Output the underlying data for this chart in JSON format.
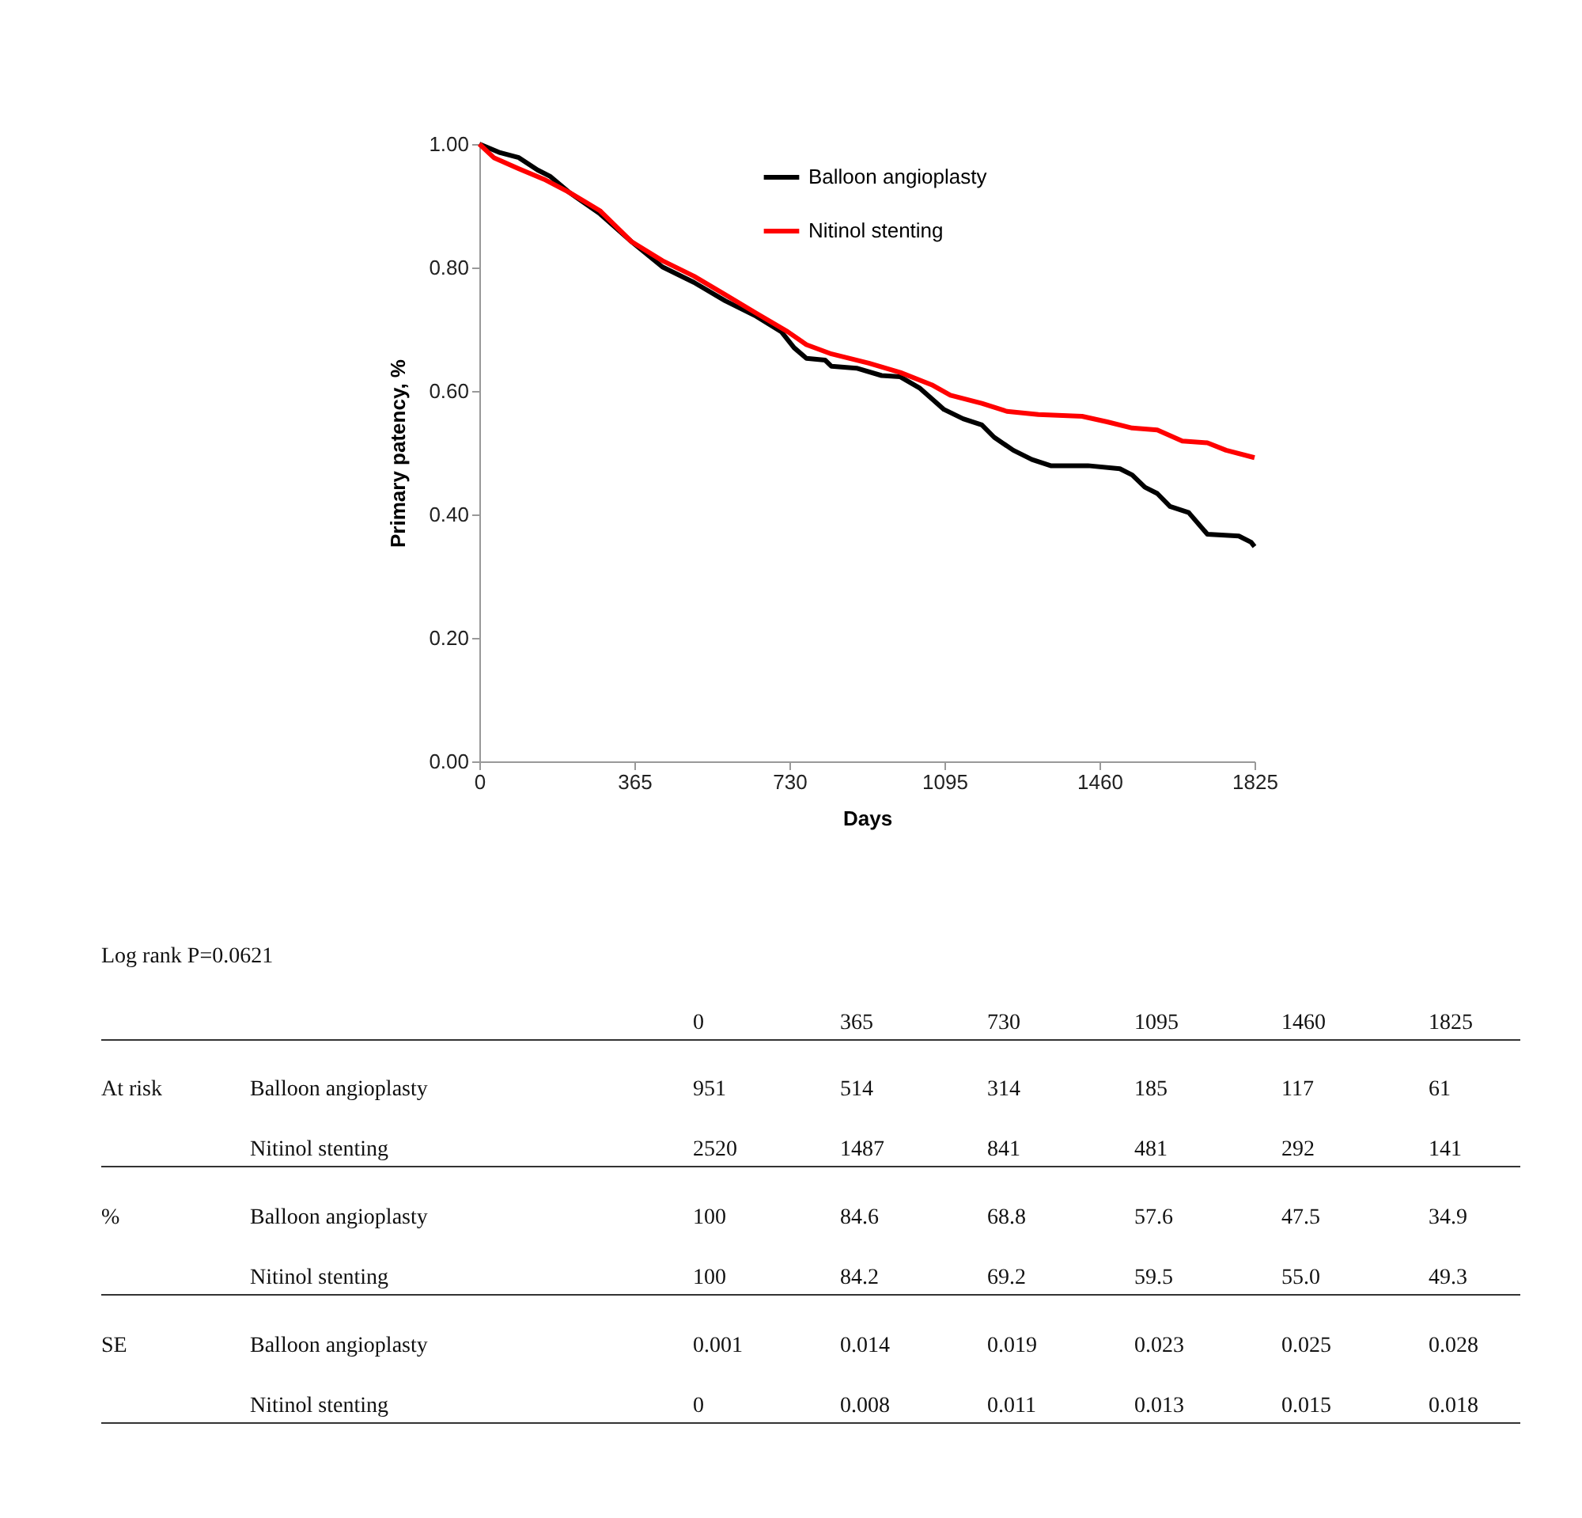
{
  "chart_data": {
    "type": "line",
    "xlabel": "Days",
    "ylabel": "Primary patency, %",
    "xlim": [
      0,
      1825
    ],
    "xticks": [
      0,
      365,
      730,
      1095,
      1460,
      1825
    ],
    "ylim": [
      0,
      1.0
    ],
    "yticks": [
      {
        "value": 0,
        "label": "0.00"
      },
      {
        "value": 0.2,
        "label": "0.20"
      },
      {
        "value": 0.4,
        "label": "0.40"
      },
      {
        "value": 0.6,
        "label": "0.60"
      },
      {
        "value": 0.8,
        "label": "0.80"
      },
      {
        "value": 1.0,
        "label": "1.00"
      }
    ],
    "grid": false,
    "legend": "top right",
    "series": [
      {
        "name": "Balloon angioplasty",
        "color": "#000000",
        "x": [
          0,
          49,
          93,
          137,
          166,
          211,
          284,
          358,
          431,
          505,
          579,
          652,
          711,
          741,
          770,
          814,
          829,
          888,
          947,
          991,
          1036,
          1094,
          1139,
          1183,
          1212,
          1257,
          1301,
          1345,
          1433,
          1508,
          1537,
          1567,
          1596,
          1626,
          1670,
          1714,
          1788,
          1817,
          1825
        ],
        "values": [
          1.0,
          0.986,
          0.978,
          0.958,
          0.948,
          0.922,
          0.887,
          0.842,
          0.801,
          0.776,
          0.746,
          0.721,
          0.696,
          0.67,
          0.653,
          0.65,
          0.64,
          0.637,
          0.625,
          0.623,
          0.605,
          0.57,
          0.555,
          0.545,
          0.525,
          0.504,
          0.489,
          0.479,
          0.479,
          0.474,
          0.464,
          0.444,
          0.434,
          0.413,
          0.403,
          0.368,
          0.365,
          0.355,
          0.348
        ]
      },
      {
        "name": "Nitinol stenting",
        "color": "#ff0000",
        "x": [
          0,
          34,
          93,
          152,
          211,
          284,
          358,
          431,
          505,
          579,
          652,
          726,
          770,
          829,
          917,
          991,
          1065,
          1109,
          1183,
          1242,
          1316,
          1419,
          1478,
          1537,
          1596,
          1655,
          1714,
          1758,
          1825
        ],
        "values": [
          1.0,
          0.978,
          0.96,
          0.943,
          0.922,
          0.892,
          0.842,
          0.811,
          0.786,
          0.756,
          0.726,
          0.696,
          0.675,
          0.66,
          0.645,
          0.63,
          0.61,
          0.593,
          0.58,
          0.567,
          0.562,
          0.559,
          0.55,
          0.54,
          0.537,
          0.519,
          0.516,
          0.504,
          0.492
        ]
      }
    ],
    "annotations": [
      "Log rank P=0.0621",
      "0",
      "365",
      "730",
      "1095",
      "1460",
      "1825",
      "At risk",
      "Balloon angioplasty",
      "951",
      "514",
      "314",
      "185",
      "117",
      "61",
      "Nitinol stenting",
      "2520",
      "1487",
      "841",
      "481",
      "292",
      "141",
      "%",
      "Balloon angioplasty",
      "100",
      "84.6",
      "68.8",
      "57.6",
      "47.5",
      "34.9",
      "Nitinol stenting",
      "100",
      "84.2",
      "69.2",
      "59.5",
      "55.0",
      "49.3",
      "SE",
      "Balloon angioplasty",
      "0.001",
      "0.014",
      "0.019",
      "0.023",
      "0.025",
      "0.028",
      "Nitinol stenting",
      "0",
      "0.008",
      "0.011",
      "0.013",
      "0.015",
      "0.018"
    ]
  }
}
